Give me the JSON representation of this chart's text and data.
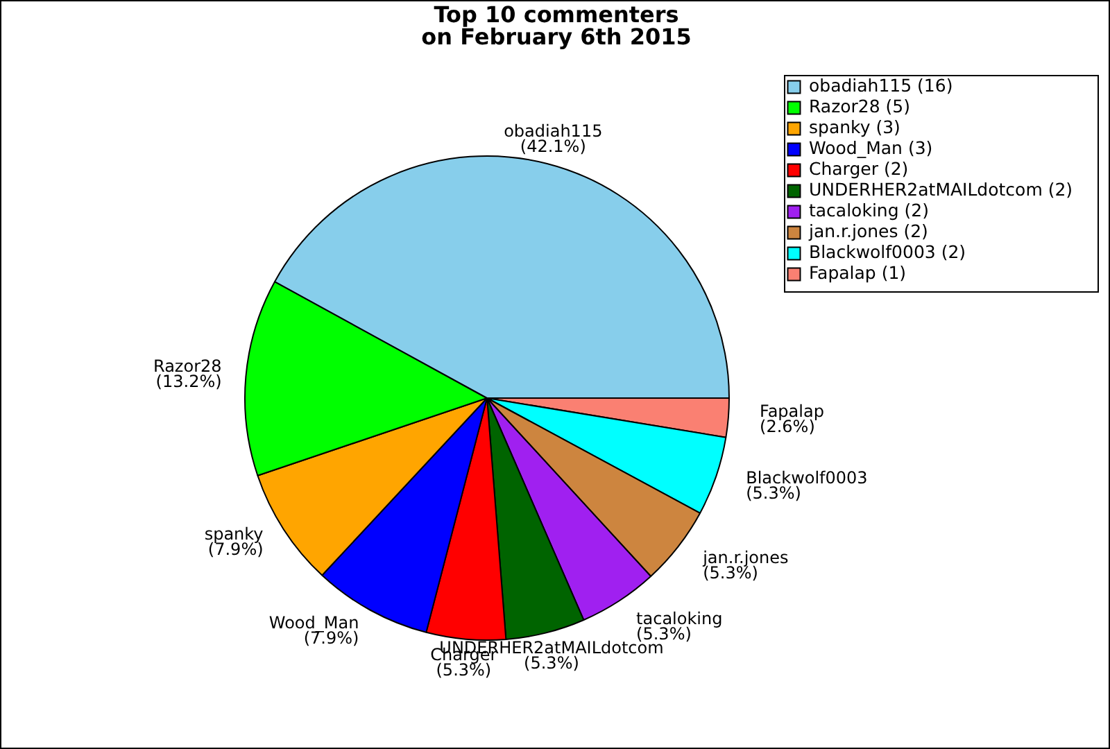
{
  "chart_data": {
    "type": "pie",
    "title": "Top 10 commenters on February 6th 2015",
    "categories": [
      "obadiah115",
      "Razor28",
      "spanky",
      "Wood_Man",
      "Charger",
      "UNDERHER2atMAILdotcom",
      "tacaloking",
      "jan.r.jones",
      "Blackwolf0003",
      "Fapalap"
    ],
    "values": [
      42.1,
      13.2,
      7.9,
      7.9,
      5.3,
      5.3,
      5.3,
      5.3,
      5.3,
      2.6
    ],
    "value_labels": [
      "(42.1%)",
      "(13.2%)",
      "(7.9%)",
      "(7.9%)",
      "(5.3%)",
      "(5.3%)",
      "(5.3%)",
      "(5.3%)",
      "(5.3%)",
      "(2.6%)"
    ],
    "annotations": [
      "(16)",
      "(5)",
      "(3)",
      "(3)",
      "(2)",
      "(2)",
      "(2)",
      "(2)",
      "(2)",
      "(1)"
    ],
    "colors": [
      "#87ceeb",
      "#00ff00",
      "#ffa500",
      "#0000ff",
      "#ff0000",
      "#006400",
      "#a020f0",
      "#cd853f",
      "#00ffff",
      "#fa8072"
    ],
    "legend": "top right"
  }
}
